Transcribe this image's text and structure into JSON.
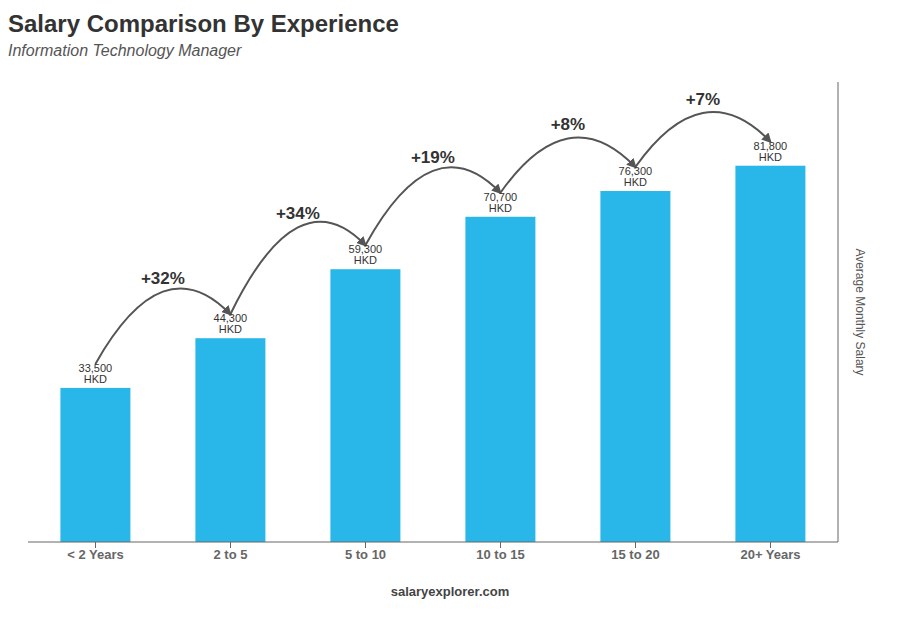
{
  "chart_data": {
    "type": "bar",
    "title": "Salary Comparison By Experience",
    "subtitle": "Information Technology Manager",
    "categories": [
      "< 2 Years",
      "2 to 5",
      "5 to 10",
      "10 to 15",
      "15 to 20",
      "20+ Years"
    ],
    "values": [
      33500,
      44300,
      59300,
      70700,
      76300,
      81800
    ],
    "value_labels": [
      "33,500 HKD",
      "44,300 HKD",
      "59,300 HKD",
      "70,700 HKD",
      "76,300 HKD",
      "81,800 HKD"
    ],
    "data_labels": true,
    "color": "#29b6e8",
    "ylabel": "Average Monthly Salary",
    "ylim": [
      0,
      100000
    ],
    "tick_labels": "x",
    "grid": false,
    "annotations": [
      {
        "text": "+32%",
        "x": "2 to 5"
      },
      {
        "text": "+34%",
        "x": "5 to 10"
      },
      {
        "text": "+19%",
        "x": "10 to 15"
      },
      {
        "text": "+8%",
        "x": "15 to 20"
      },
      {
        "text": "+7%",
        "x": "20+ Years"
      },
      {
        "text": "salary"
      },
      {
        "text": "explorer.com"
      }
    ]
  }
}
